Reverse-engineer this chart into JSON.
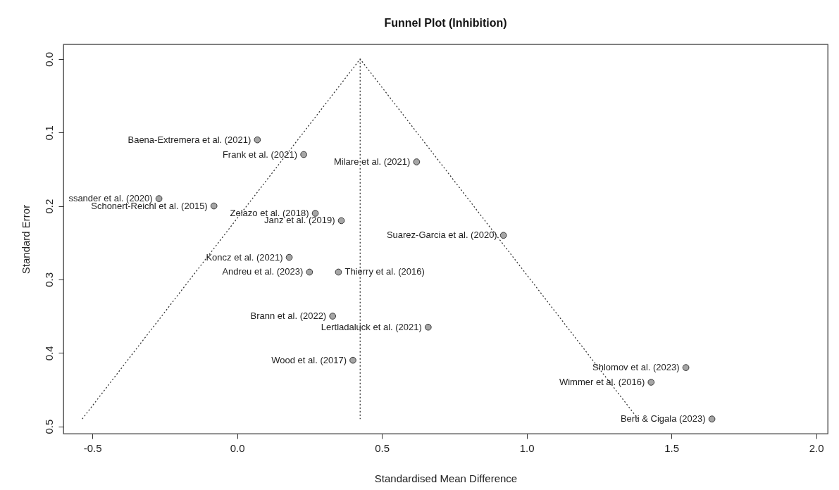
{
  "chart_data": {
    "type": "scatter",
    "title": "Funnel Plot (Inhibition)",
    "xlabel": "Standardised Mean Difference",
    "ylabel": "Standard Error",
    "xlim": [
      -0.6,
      2.04
    ],
    "ylim": [
      0.51,
      -0.02
    ],
    "xticks": [
      -0.5,
      {
        "value": 0,
        "label": "0.0"
      },
      0.5,
      {
        "value": 1,
        "label": "1.0"
      },
      1.5,
      {
        "value": 2,
        "label": "2.0"
      }
    ],
    "yticks": [
      {
        "value": 0,
        "label": "0.0"
      },
      0.1,
      0.2,
      0.3,
      0.4,
      0.5
    ],
    "grid": false,
    "series": [
      {
        "type": "line",
        "x": [
          -0.535,
          0.425,
          1.385
        ],
        "values": [
          0.49,
          0,
          0.49
        ],
        "color": "#333333",
        "line_style": "dotted",
        "marker": "none"
      },
      {
        "type": "line",
        "x": [
          0.425,
          0.425
        ],
        "values": [
          0,
          0.49
        ],
        "color": "#333333",
        "line_style": "dotted",
        "marker": "none"
      },
      {
        "x": [
          0.07,
          0.23,
          0.62,
          -0.27,
          -0.08,
          0.27,
          0.36,
          0.92,
          0.18,
          0.25,
          0.35,
          0.33,
          0.66,
          0.4,
          1.55,
          1.43,
          1.64
        ],
        "values": [
          0.11,
          0.13,
          0.14,
          0.19,
          0.2,
          0.21,
          0.22,
          0.24,
          0.27,
          0.29,
          0.29,
          0.35,
          0.365,
          0.41,
          0.42,
          0.44,
          0.49
        ],
        "color": "#a6a6a6",
        "marker": "circle"
      }
    ],
    "annotations": [
      {
        "text": "Baena-Extremera et al. (2021)",
        "x": 0.07,
        "y": 0.11
      },
      {
        "text": "Frank et al. (2021)",
        "x": 0.23,
        "y": 0.13
      },
      {
        "text": "Milare et al. (2021)",
        "x": 0.62,
        "y": 0.14
      },
      {
        "text": "ssander et al. (2020)",
        "x": -0.27,
        "y": 0.19
      },
      {
        "text": "Schonert-Reichl et al. (2015)",
        "x": -0.08,
        "y": 0.2
      },
      {
        "text": "Zelazo et al. (2018)",
        "x": 0.27,
        "y": 0.21
      },
      {
        "text": "Janz et al. (2019)",
        "x": 0.36,
        "y": 0.22
      },
      {
        "text": "Suarez-Garcia et al. (2020)",
        "x": 0.92,
        "y": 0.24
      },
      {
        "text": "Koncz et al. (2021)",
        "x": 0.18,
        "y": 0.27
      },
      {
        "text": "Andreu et al. (2023)",
        "x": 0.25,
        "y": 0.29
      },
      {
        "text": "Thierry et al. (2016)",
        "x": 0.35,
        "y": 0.29
      },
      {
        "text": "Brann et al. (2022)",
        "x": 0.33,
        "y": 0.35
      },
      {
        "text": "Lertladaluck et al. (2021)",
        "x": 0.66,
        "y": 0.365
      },
      {
        "text": "Wood et al. (2017)",
        "x": 0.4,
        "y": 0.41
      },
      {
        "text": "Shlomov et al. (2023)",
        "x": 1.55,
        "y": 0.42
      },
      {
        "text": "Wimmer et al. (2016)",
        "x": 1.43,
        "y": 0.44
      },
      {
        "text": "Berti & Cigala (2023)",
        "x": 1.64,
        "y": 0.49
      }
    ]
  }
}
